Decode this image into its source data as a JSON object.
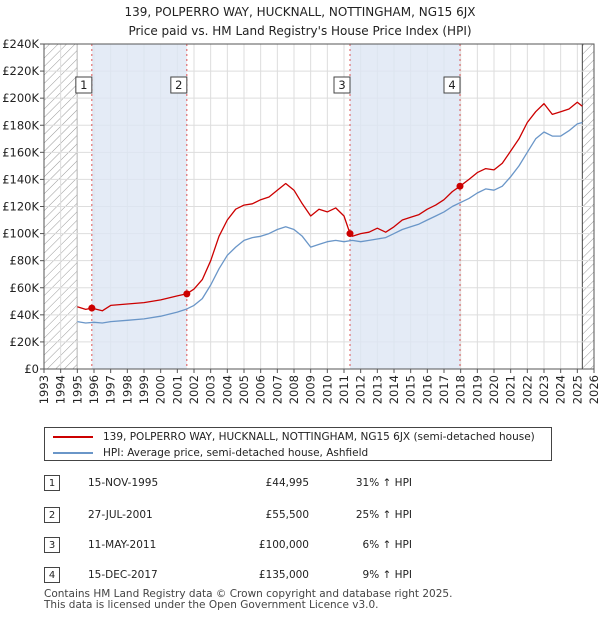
{
  "title": {
    "line1": "139, POLPERRO WAY, HUCKNALL, NOTTINGHAM, NG15 6JX",
    "line2": "Price paid vs. HM Land Registry's House Price Index (HPI)"
  },
  "colors": {
    "property": "#cc0000",
    "hpi": "#6a96c8",
    "marker_line": "#dd5555",
    "band": "#dde6f4",
    "hatch": "#999999",
    "grid": "#dddddd"
  },
  "chart_data": {
    "type": "line",
    "title": "Price paid vs. HM Land Registry's House Price Index (HPI)",
    "xlabel": "",
    "ylabel": "",
    "xlim": [
      1993,
      2026
    ],
    "ylim": [
      0,
      240000
    ],
    "x_ticks": [
      1993,
      1994,
      1995,
      1996,
      1997,
      1998,
      1999,
      2000,
      2001,
      2002,
      2003,
      2004,
      2005,
      2006,
      2007,
      2008,
      2009,
      2010,
      2011,
      2012,
      2013,
      2014,
      2015,
      2016,
      2017,
      2018,
      2019,
      2020,
      2021,
      2022,
      2023,
      2024,
      2025,
      2026
    ],
    "y_ticks": [
      {
        "value": 0,
        "label": "£0"
      },
      {
        "value": 20000,
        "label": "£20K"
      },
      {
        "value": 40000,
        "label": "£40K"
      },
      {
        "value": 60000,
        "label": "£60K"
      },
      {
        "value": 80000,
        "label": "£80K"
      },
      {
        "value": 100000,
        "label": "£100K"
      },
      {
        "value": 120000,
        "label": "£120K"
      },
      {
        "value": 140000,
        "label": "£140K"
      },
      {
        "value": 160000,
        "label": "£160K"
      },
      {
        "value": 180000,
        "label": "£180K"
      },
      {
        "value": 200000,
        "label": "£200K"
      },
      {
        "value": 220000,
        "label": "£220K"
      },
      {
        "value": 240000,
        "label": "£240K"
      }
    ],
    "grid": true,
    "data_range": [
      1995.0,
      2025.3
    ],
    "series": [
      {
        "name": "139, POLPERRO WAY, HUCKNALL, NOTTINGHAM, NG15 6JX (semi-detached house)",
        "color": "#cc0000",
        "x": [
          1995.0,
          1995.5,
          1995.87,
          1996.5,
          1997.0,
          1998.0,
          1999.0,
          2000.0,
          2001.0,
          2001.57,
          2002.0,
          2002.5,
          2003.0,
          2003.5,
          2004.0,
          2004.5,
          2005.0,
          2005.5,
          2006.0,
          2006.5,
          2007.0,
          2007.5,
          2008.0,
          2008.5,
          2009.0,
          2009.5,
          2010.0,
          2010.5,
          2011.0,
          2011.36,
          2011.5,
          2012.0,
          2012.5,
          2013.0,
          2013.5,
          2014.0,
          2014.5,
          2015.0,
          2015.5,
          2016.0,
          2016.5,
          2017.0,
          2017.5,
          2017.96,
          2018.5,
          2019.0,
          2019.5,
          2020.0,
          2020.5,
          2021.0,
          2021.5,
          2022.0,
          2022.5,
          2023.0,
          2023.5,
          2024.0,
          2024.5,
          2025.0,
          2025.3
        ],
        "values": [
          46000,
          44000,
          44995,
          43000,
          47000,
          48000,
          49000,
          51000,
          54000,
          55500,
          59000,
          66000,
          80000,
          98000,
          110000,
          118000,
          121000,
          122000,
          125000,
          127000,
          132000,
          137000,
          132000,
          122000,
          113000,
          118000,
          116000,
          119000,
          113000,
          100000,
          98000,
          100000,
          101000,
          104000,
          101000,
          105000,
          110000,
          112000,
          114000,
          118000,
          121000,
          125000,
          131000,
          135000,
          140000,
          145000,
          148000,
          147000,
          152000,
          161000,
          170000,
          182000,
          190000,
          196000,
          188000,
          190000,
          192000,
          197000,
          194000
        ]
      },
      {
        "name": "HPI: Average price, semi-detached house, Ashfield",
        "color": "#6a96c8",
        "x": [
          1995.0,
          1995.5,
          1996.0,
          1996.5,
          1997.0,
          1998.0,
          1999.0,
          2000.0,
          2001.0,
          2001.5,
          2002.0,
          2002.5,
          2003.0,
          2003.5,
          2004.0,
          2004.5,
          2005.0,
          2005.5,
          2006.0,
          2006.5,
          2007.0,
          2007.5,
          2008.0,
          2008.5,
          2009.0,
          2009.5,
          2010.0,
          2010.5,
          2011.0,
          2011.5,
          2012.0,
          2012.5,
          2013.0,
          2013.5,
          2014.0,
          2014.5,
          2015.0,
          2015.5,
          2016.0,
          2016.5,
          2017.0,
          2017.5,
          2018.0,
          2018.5,
          2019.0,
          2019.5,
          2020.0,
          2020.5,
          2021.0,
          2021.5,
          2022.0,
          2022.5,
          2023.0,
          2023.5,
          2024.0,
          2024.5,
          2025.0,
          2025.3
        ],
        "values": [
          35000,
          34000,
          34500,
          34000,
          35000,
          36000,
          37000,
          39000,
          42000,
          44000,
          47000,
          52000,
          62000,
          74000,
          84000,
          90000,
          95000,
          97000,
          98000,
          100000,
          103000,
          105000,
          103000,
          98000,
          90000,
          92000,
          94000,
          95000,
          94000,
          95000,
          94000,
          95000,
          96000,
          97000,
          100000,
          103000,
          105000,
          107000,
          110000,
          113000,
          116000,
          120000,
          123000,
          126000,
          130000,
          133000,
          132000,
          135000,
          142000,
          150000,
          160000,
          170000,
          175000,
          172000,
          172000,
          176000,
          181000,
          182000
        ]
      }
    ],
    "transactions": [
      {
        "id": "1",
        "date": "15-NOV-1995",
        "x": 1995.87,
        "price": 44995,
        "price_label": "£44,995",
        "hpi_change": "31% ↑ HPI"
      },
      {
        "id": "2",
        "date": "27-JUL-2001",
        "x": 2001.57,
        "price": 55500,
        "price_label": "£55,500",
        "hpi_change": "25% ↑ HPI"
      },
      {
        "id": "3",
        "date": "11-MAY-2011",
        "x": 2011.36,
        "price": 100000,
        "price_label": "£100,000",
        "hpi_change": "6% ↑ HPI"
      },
      {
        "id": "4",
        "date": "15-DEC-2017",
        "x": 2017.96,
        "price": 135000,
        "price_label": "£135,000",
        "hpi_change": "9% ↑ HPI"
      }
    ]
  },
  "legend": {
    "property_label": "139, POLPERRO WAY, HUCKNALL, NOTTINGHAM, NG15 6JX (semi-detached house)",
    "hpi_label": "HPI: Average price, semi-detached house, Ashfield"
  },
  "footer": {
    "line1": "Contains HM Land Registry data © Crown copyright and database right 2025.",
    "line2": "This data is licensed under the Open Government Licence v3.0."
  }
}
